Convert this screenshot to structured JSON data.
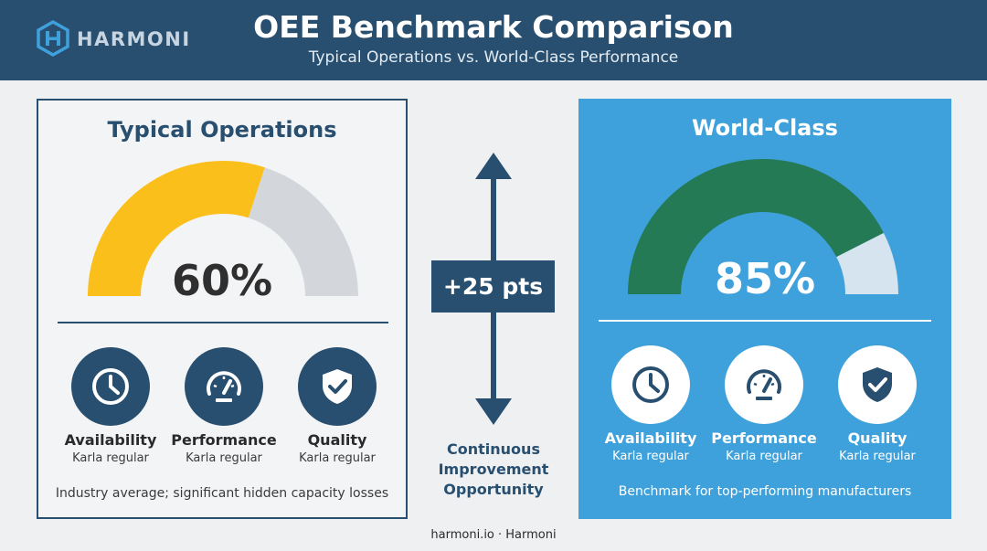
{
  "header": {
    "logo_text": "HARMONI",
    "title": "OEE Benchmark Comparison",
    "subtitle": "Typical Operations vs. World-Class Performance"
  },
  "typical": {
    "title": "Typical Operations",
    "value_label": "60%",
    "oee_fraction": 0.6,
    "gauge_color": "#fbbf1c",
    "gauge_track_color": "#d3d7db",
    "metrics": [
      {
        "name": "Availability",
        "sub": "Karla regular",
        "icon": "clock-icon"
      },
      {
        "name": "Performance",
        "sub": "Karla regular",
        "icon": "speedometer-icon"
      },
      {
        "name": "Quality",
        "sub": "Karla regular",
        "icon": "shield-check-icon"
      }
    ],
    "footnote": "Industry average; significant hidden capacity losses"
  },
  "world_class": {
    "title": "World-Class",
    "value_label": "85%",
    "oee_fraction": 0.85,
    "gauge_color": "#237a54",
    "gauge_track_color": "#d5e4ee",
    "metrics": [
      {
        "name": "Availability",
        "sub": "Karla regular",
        "icon": "clock-icon"
      },
      {
        "name": "Performance",
        "sub": "Karla regular",
        "icon": "speedometer-icon"
      },
      {
        "name": "Quality",
        "sub": "Karla regular",
        "icon": "shield-check-icon"
      }
    ],
    "footnote": "Benchmark for top-performing manufacturers"
  },
  "center": {
    "delta_label": "+25 pts",
    "caption_lines": [
      "Continuous",
      "Improvement",
      "Opportunity"
    ]
  },
  "colors": {
    "brand_navy": "#284f6f",
    "brand_blue": "#3ea1dc",
    "logo_blue": "#3ea1dc"
  },
  "footer": {
    "text": "harmoni.io · Harmoni"
  }
}
